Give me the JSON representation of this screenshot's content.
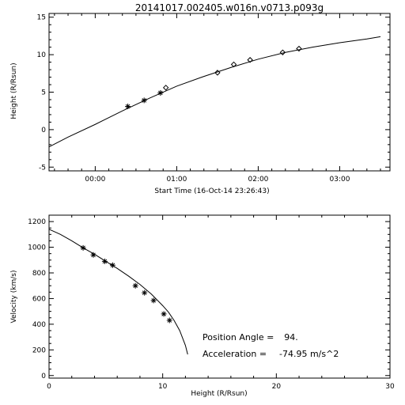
{
  "chart_data": [
    {
      "type": "scatter",
      "title": "20141017.002405.w016n.v0713.p093g",
      "xlabel": "Start Time (16-Oct-14 23:26:43)",
      "ylabel": "Height (R/Rsun)",
      "xlim": [
        -34,
        217
      ],
      "ylim": [
        -5.5,
        15.5
      ],
      "xticks": [
        {
          "value": 0,
          "label": "00:00"
        },
        {
          "value": 60,
          "label": "01:00"
        },
        {
          "value": 120,
          "label": "02:00"
        },
        {
          "value": 180,
          "label": "03:00"
        }
      ],
      "yticks": [
        -5,
        0,
        5,
        10,
        15
      ],
      "series": [
        {
          "marker": "asterisk",
          "x": [
            24,
            36,
            48
          ],
          "y": [
            3.1,
            3.9,
            4.9
          ]
        },
        {
          "marker": "diamond",
          "x": [
            52,
            90,
            102,
            114,
            138,
            150
          ],
          "y": [
            5.6,
            7.6,
            8.7,
            9.3,
            10.3,
            10.8
          ]
        },
        {
          "marker": "line",
          "x": [
            -34,
            -20,
            0,
            20,
            40,
            60,
            80,
            100,
            120,
            140,
            160,
            180,
            200,
            210
          ],
          "y": [
            -2.3,
            -1.0,
            0.7,
            2.5,
            4.2,
            5.8,
            7.1,
            8.3,
            9.4,
            10.3,
            11.0,
            11.6,
            12.1,
            12.4
          ]
        }
      ]
    },
    {
      "type": "scatter",
      "xlabel": "Height (R/Rsun)",
      "ylabel": "Velocity (km/s)",
      "xlim": [
        0,
        30
      ],
      "ylim": [
        -20,
        1250
      ],
      "xticks": [
        0,
        10,
        20,
        30
      ],
      "yticks": [
        0,
        200,
        400,
        600,
        800,
        1000,
        1200
      ],
      "series": [
        {
          "marker": "asterisk",
          "x": [
            3.0,
            3.9,
            4.9,
            5.6,
            7.6,
            8.4,
            9.2,
            10.1,
            10.6
          ],
          "y": [
            995,
            940,
            890,
            860,
            700,
            645,
            585,
            480,
            430
          ]
        },
        {
          "marker": "line",
          "x": [
            0,
            1,
            2,
            3,
            4,
            5,
            6,
            7,
            8,
            9,
            10,
            10.5,
            11,
            11.5,
            12,
            12.2
          ],
          "y": [
            1140,
            1100,
            1050,
            995,
            945,
            890,
            835,
            775,
            710,
            635,
            545,
            495,
            430,
            350,
            235,
            165
          ]
        }
      ],
      "annotations": [
        {
          "label": "Position Angle =",
          "value": "94."
        },
        {
          "label": "Acceleration =",
          "value": "-74.95 m/s^2"
        }
      ]
    }
  ]
}
